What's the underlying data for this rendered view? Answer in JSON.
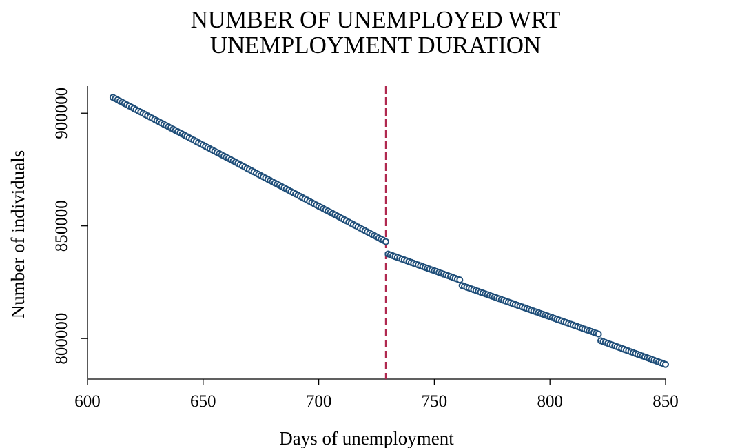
{
  "chart_data": {
    "type": "scatter",
    "title_lines": [
      "NUMBER OF UNEMPLOYED WRT",
      "UNEMPLOYMENT DURATION"
    ],
    "xlabel": "Days of unemployment",
    "ylabel": "Number of individuals",
    "xlim": [
      600,
      850
    ],
    "ylim": [
      782000,
      912000
    ],
    "x_ticks": [
      600,
      650,
      700,
      750,
      800,
      850
    ],
    "y_ticks": [
      800000,
      850000,
      900000
    ],
    "vline_x": 729,
    "marker_color": "#1f4e79",
    "vline_color": "#b0284f",
    "grid": false,
    "legend": "none",
    "segments": [
      {
        "x0": 611,
        "x1": 729,
        "y0": 907000,
        "y1": 843000
      },
      {
        "x0": 730,
        "x1": 761,
        "y0": 837500,
        "y1": 826000
      },
      {
        "x0": 762,
        "x1": 821,
        "y0": 823500,
        "y1": 802000
      },
      {
        "x0": 822,
        "x1": 850,
        "y0": 799000,
        "y1": 788500
      }
    ]
  }
}
